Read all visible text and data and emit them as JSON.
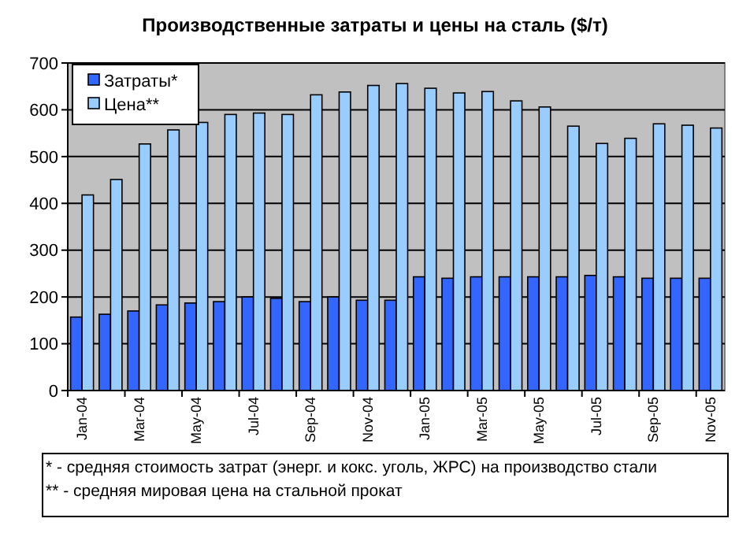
{
  "chart_data": {
    "type": "bar",
    "title": "Производственные затраты и цены на сталь ($/т)",
    "categories": [
      "Jan-04",
      null,
      "Mar-04",
      null,
      "May-04",
      null,
      "Jul-04",
      null,
      "Sep-04",
      null,
      "Nov-04",
      null,
      "Jan-05",
      null,
      "Mar-05",
      null,
      "May-05",
      null,
      "Jul-05",
      null,
      "Sep-05",
      null,
      "Nov-05"
    ],
    "series": [
      {
        "name": "Затраты*",
        "color": "#3366ff",
        "values": [
          157,
          163,
          170,
          183,
          187,
          190,
          200,
          197,
          190,
          200,
          193,
          193,
          243,
          240,
          243,
          243,
          243,
          243,
          246,
          243,
          240,
          240,
          240
        ]
      },
      {
        "name": "Цена**",
        "color": "#99ccff",
        "values": [
          418,
          451,
          527,
          557,
          573,
          590,
          593,
          590,
          632,
          638,
          652,
          656,
          646,
          636,
          639,
          619,
          606,
          565,
          528,
          539,
          570,
          567,
          561
        ]
      }
    ],
    "ylim": [
      0,
      700
    ],
    "yticks": [
      0,
      100,
      200,
      300,
      400,
      500,
      600,
      700
    ],
    "grid": "y",
    "legend": "top left",
    "annotations": [
      "* - средняя стоимость затрат (энерг. и кокс. уголь, ЖРС) на производство стали",
      "** - средняя мировая цена на стальной прокат"
    ]
  }
}
